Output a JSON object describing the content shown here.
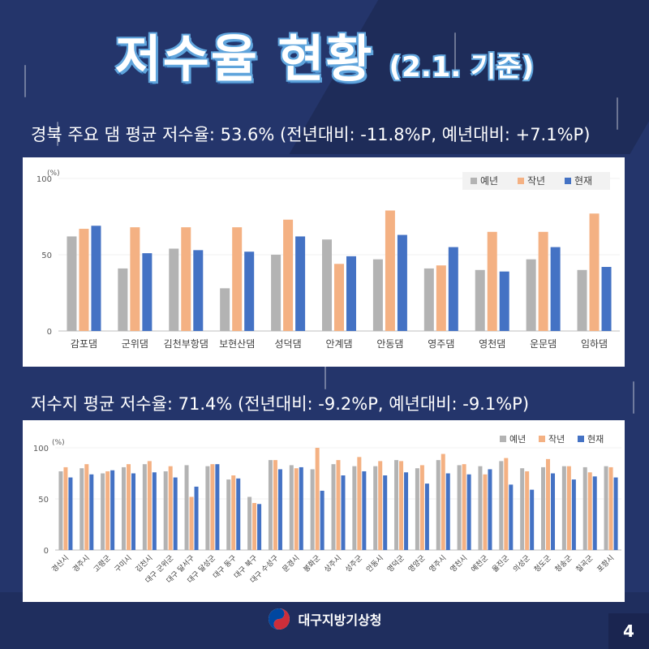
{
  "header": {
    "title": "저수율 현황",
    "subtitle": "(2.1. 기준)"
  },
  "section1": {
    "heading": "경북 주요 댐 평균 저수율: 53.6% (전년대비: -11.8%P, 예년대비: +7.1%P)"
  },
  "section2": {
    "heading": "저수지 평균 저수율: 71.4% (전년대비: -9.2%P, 예년대비: -9.1%P)"
  },
  "footer": {
    "org": "대구지방기상청",
    "page": "4"
  },
  "colors": {
    "normal": "#b3b3b3",
    "last_year": "#f4b183",
    "current": "#4472c4",
    "background": "#24356b",
    "title_outline": "#5fa4dc"
  },
  "chart_data": [
    {
      "type": "bar",
      "unit": "(%)",
      "ylim": [
        0,
        100
      ],
      "yticks": [
        0,
        50,
        100
      ],
      "legend_position": "top-right",
      "categories": [
        "감포댐",
        "군위댐",
        "김천부항댐",
        "보현산댐",
        "성덕댐",
        "안계댐",
        "안동댐",
        "영주댐",
        "영천댐",
        "운문댐",
        "임하댐"
      ],
      "series": [
        {
          "name": "예년",
          "values": [
            62,
            41,
            54,
            28,
            50,
            60,
            47,
            41,
            40,
            47,
            40
          ]
        },
        {
          "name": "작년",
          "values": [
            67,
            68,
            68,
            68,
            73,
            44,
            79,
            43,
            65,
            65,
            77
          ]
        },
        {
          "name": "현재",
          "values": [
            69,
            51,
            53,
            52,
            62,
            49,
            63,
            55,
            39,
            55,
            42
          ]
        }
      ]
    },
    {
      "type": "bar",
      "unit": "(%)",
      "ylim": [
        0,
        100
      ],
      "yticks": [
        0,
        50,
        100
      ],
      "legend_position": "top-right",
      "categories": [
        "경산시",
        "경주시",
        "고령군",
        "구미시",
        "김천시",
        "대구 군위군",
        "대구 달서구",
        "대구 달성군",
        "대구 동구",
        "대구 북구",
        "대구 수성구",
        "문경시",
        "봉화군",
        "상주시",
        "성주군",
        "안동시",
        "영덕군",
        "영양군",
        "영주시",
        "영천시",
        "예천군",
        "울진군",
        "의성군",
        "청도군",
        "청송군",
        "칠곡군",
        "포항시"
      ],
      "series": [
        {
          "name": "예년",
          "values": [
            77,
            80,
            75,
            81,
            84,
            77,
            83,
            82,
            69,
            52,
            88,
            83,
            79,
            84,
            82,
            82,
            88,
            80,
            88,
            83,
            82,
            87,
            80,
            81,
            82,
            81,
            82
          ]
        },
        {
          "name": "작년",
          "values": [
            81,
            84,
            77,
            84,
            87,
            82,
            52,
            84,
            73,
            46,
            88,
            80,
            100,
            88,
            91,
            87,
            87,
            83,
            94,
            84,
            74,
            90,
            77,
            89,
            82,
            76,
            81
          ]
        },
        {
          "name": "현재",
          "values": [
            71,
            74,
            78,
            75,
            76,
            71,
            62,
            84,
            70,
            45,
            79,
            81,
            58,
            73,
            77,
            73,
            76,
            65,
            75,
            74,
            79,
            64,
            59,
            75,
            69,
            72,
            71
          ]
        }
      ]
    }
  ]
}
